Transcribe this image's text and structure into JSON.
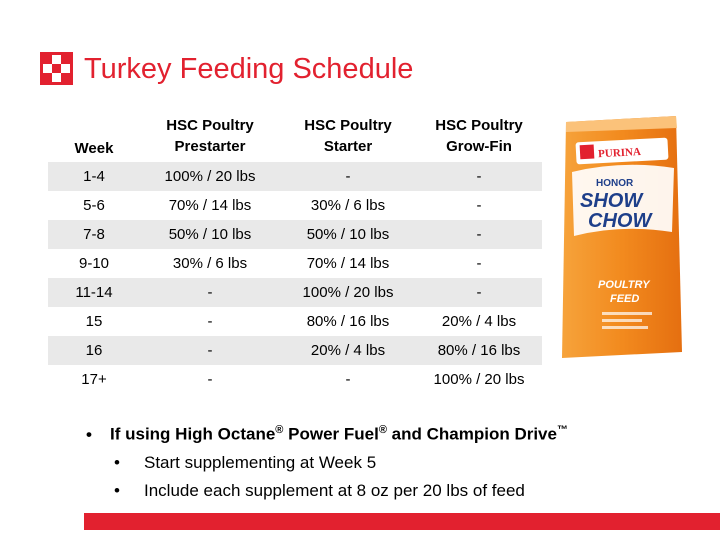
{
  "title": "Turkey Feeding Schedule",
  "colors": {
    "brand_red": "#e2212f",
    "row_shade": "#e9e9e9",
    "bag_orange": "#f28a1e"
  },
  "logo": {
    "icon": "checkerboard-logo-icon"
  },
  "table": {
    "headers": [
      [
        "Week"
      ],
      [
        "HSC Poultry",
        "Prestarter"
      ],
      [
        "HSC Poultry",
        "Starter"
      ],
      [
        "HSC Poultry",
        "Grow-Fin"
      ]
    ],
    "rows": [
      [
        "1-4",
        "100% / 20 lbs",
        "-",
        "-"
      ],
      [
        "5-6",
        "70% / 14 lbs",
        "30% / 6 lbs",
        "-"
      ],
      [
        "7-8",
        "50% / 10 lbs",
        "50% / 10 lbs",
        "-"
      ],
      [
        "9-10",
        "30% / 6 lbs",
        "70% / 14 lbs",
        "-"
      ],
      [
        "11-14",
        "-",
        "100% / 20 lbs",
        "-"
      ],
      [
        "15",
        "-",
        "80% / 16 lbs",
        "20% / 4 lbs"
      ],
      [
        "16",
        "-",
        "20% / 4 lbs",
        "80% / 16 lbs"
      ],
      [
        "17+",
        "-",
        "-",
        "100% / 20 lbs"
      ]
    ]
  },
  "bag": {
    "brand": "PURINA",
    "line1": "HONOR",
    "line2": "SHOW",
    "line3": "CHOW",
    "product1": "POULTRY",
    "product2": "FEED",
    "icon": "feed-bag-icon"
  },
  "bullets": {
    "main": {
      "dot": "•",
      "pre": "If using High Octane",
      "reg1": "®",
      "mid": " Power Fuel",
      "reg2": "®",
      "post": " and Champion Drive",
      "tm": "™"
    },
    "sub": [
      {
        "dot": "•",
        "text": "Start supplementing at Week 5"
      },
      {
        "dot": "•",
        "text": "Include each supplement at 8 oz per 20 lbs of feed"
      }
    ]
  }
}
